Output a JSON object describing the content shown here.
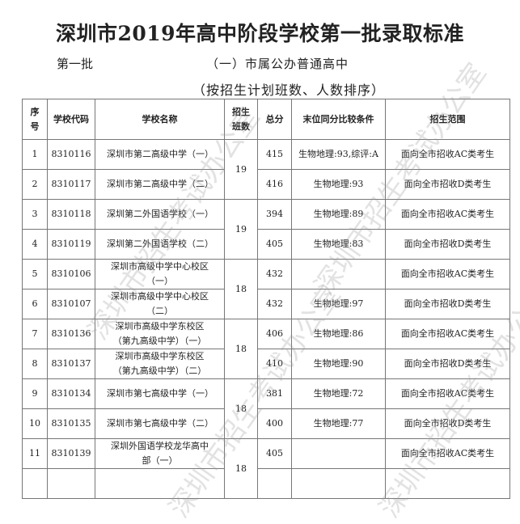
{
  "title": "深圳市2019年高中阶段学校第一批录取标准",
  "batch": "第一批",
  "category": "（一）市属公办普通高中",
  "sort_note": "（按招生计划班数、人数排序）",
  "watermark": "深圳市招生考试办公室",
  "table": {
    "headers": [
      "序号",
      "学校代码",
      "学校名称",
      "招生班数",
      "总分",
      "末位同分比较条件",
      "招生范围"
    ],
    "rows": [
      {
        "no": "1",
        "code": "8310116",
        "name": "深圳市第二高级中学（一）",
        "score": "415",
        "cond": "生物地理:93,综评:A",
        "scope": "面向全市招收AC类考生"
      },
      {
        "no": "2",
        "code": "8310117",
        "name": "深圳市第二高级中学（二）",
        "score": "416",
        "cond": "生物地理:93",
        "scope": "面向全市招收D类考生"
      },
      {
        "no": "3",
        "code": "8310118",
        "name": "深圳第二外国语学校（一）",
        "score": "394",
        "cond": "生物地理:89",
        "scope": "面向全市招收AC类考生"
      },
      {
        "no": "4",
        "code": "8310119",
        "name": "深圳第二外国语学校（二）",
        "score": "405",
        "cond": "生物地理:83",
        "scope": "面向全市招收D类考生"
      },
      {
        "no": "5",
        "code": "8310106",
        "name": "深圳市高级中学中心校区（一）",
        "score": "432",
        "cond": "",
        "scope": "面向全市招收AC类考生"
      },
      {
        "no": "6",
        "code": "8310107",
        "name": "深圳市高级中学中心校区（二）",
        "score": "432",
        "cond": "生物地理:97",
        "scope": "面向全市招收D类考生"
      },
      {
        "no": "7",
        "code": "8310136",
        "name": "深圳市高级中学东校区（第九高级中学）（一）",
        "score": "406",
        "cond": "生物地理:86",
        "scope": "面向全市招收AC类考生"
      },
      {
        "no": "8",
        "code": "8310137",
        "name": "深圳市高级中学东校区（第九高级中学）（二）",
        "score": "410",
        "cond": "生物地理:90",
        "scope": "面向全市招收D类考生"
      },
      {
        "no": "9",
        "code": "8310134",
        "name": "深圳市第七高级中学（一）",
        "score": "381",
        "cond": "生物地理:72",
        "scope": "面向全市招收AC类考生"
      },
      {
        "no": "10",
        "code": "8310135",
        "name": "深圳市第七高级中学（二）",
        "score": "400",
        "cond": "生物地理:77",
        "scope": "面向全市招收D类考生"
      },
      {
        "no": "11",
        "code": "8310139",
        "name": "深圳外国语学校龙华高中部（一）",
        "score": "405",
        "cond": "",
        "scope": "面向全市招收AC类考生"
      }
    ],
    "classes": [
      "19",
      "19",
      "18",
      "18",
      "18",
      "18"
    ]
  }
}
